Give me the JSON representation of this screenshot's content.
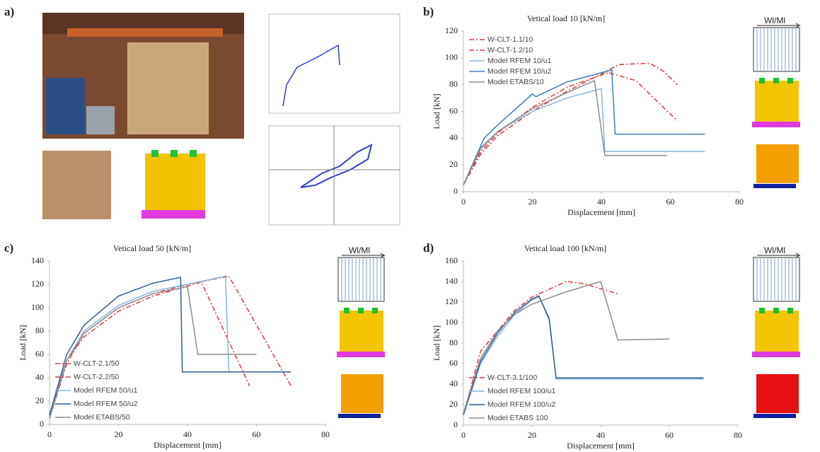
{
  "panel_labels": [
    "a)",
    "b)",
    "c)",
    "d)"
  ],
  "chart_data": [
    {
      "type": "line",
      "title": "Vetical load 10 [kN/m]",
      "x_label": "Displacement [mm]",
      "y_label": "Load [kN]",
      "xlim": [
        0,
        80
      ],
      "ylim": [
        0,
        120
      ],
      "xticks": [
        0,
        20,
        40,
        60,
        80
      ],
      "yticks": [
        0,
        20,
        40,
        60,
        80,
        100,
        120
      ],
      "grid": false,
      "legend": "upper left",
      "annotation": "Wl/Ml",
      "series": [
        {
          "name": "W-CLT-1.1/10",
          "color": "#e03a3a",
          "linestyle": "dashdot",
          "x": [
            0,
            5,
            10,
            20,
            30,
            40,
            45,
            54,
            58,
            62
          ],
          "values": [
            5,
            28,
            42,
            60,
            75,
            88,
            95,
            96,
            90,
            80
          ]
        },
        {
          "name": "W-CLT-1.2/10",
          "color": "#e03a3a",
          "linestyle": "dashdot",
          "x": [
            0,
            5,
            10,
            20,
            30,
            42,
            50,
            62
          ],
          "values": [
            5,
            30,
            44,
            63,
            78,
            89,
            83,
            53
          ]
        },
        {
          "name": "Model RFEM 10/u1",
          "color": "#86b6dc",
          "linestyle": "solid",
          "x": [
            0,
            5,
            10,
            20,
            30,
            40,
            41,
            70
          ],
          "values": [
            5,
            33,
            45,
            60,
            70,
            77,
            30,
            30
          ]
        },
        {
          "name": "Model RFEM 10/u2",
          "color": "#3d7db8",
          "linestyle": "solid",
          "x": [
            0,
            6,
            10,
            20,
            21,
            30,
            43,
            44,
            70
          ],
          "values": [
            5,
            40,
            50,
            73,
            71,
            82,
            91,
            43,
            43
          ]
        },
        {
          "name": "Model ETABS/10",
          "color": "#8c8c8c",
          "linestyle": "solid",
          "x": [
            0,
            5,
            10,
            20,
            30,
            38,
            41,
            59
          ],
          "values": [
            5,
            32,
            45,
            62,
            74,
            83,
            27,
            27
          ]
        }
      ]
    },
    {
      "type": "line",
      "title": "Vetical load 50 [kN/m]",
      "x_label": "Displacement [mm]",
      "y_label": "Load [kN]",
      "xlim": [
        0,
        80
      ],
      "ylim": [
        0,
        140
      ],
      "xticks": [
        0,
        20,
        40,
        60,
        80
      ],
      "yticks": [
        0,
        20,
        40,
        60,
        80,
        100,
        120,
        140
      ],
      "grid": false,
      "legend": "lower left",
      "annotation": "Wl/Ml",
      "series": [
        {
          "name": "W-CLT-2.1/50",
          "color": "#e03a3a",
          "linestyle": "dashdot",
          "x": [
            0,
            5,
            10,
            20,
            30,
            44,
            58
          ],
          "values": [
            8,
            55,
            75,
            97,
            110,
            122,
            33
          ]
        },
        {
          "name": "W-CLT-2.2/50",
          "color": "#e03a3a",
          "linestyle": "dashdot",
          "x": [
            0,
            5,
            10,
            20,
            30,
            40,
            52,
            70
          ],
          "values": [
            5,
            52,
            78,
            100,
            112,
            120,
            127,
            33
          ]
        },
        {
          "name": "Model RFEM 50/u1",
          "color": "#86b6dc",
          "linestyle": "solid",
          "x": [
            0,
            5,
            10,
            20,
            30,
            40,
            51,
            52,
            70
          ],
          "values": [
            8,
            55,
            80,
            102,
            114,
            120,
            127,
            45,
            45
          ]
        },
        {
          "name": "Model RFEM 50/u2",
          "color": "#2f5f94",
          "linestyle": "solid",
          "x": [
            0,
            5,
            10,
            20,
            30,
            38,
            38.5,
            70
          ],
          "values": [
            8,
            60,
            85,
            110,
            121,
            126,
            45,
            45
          ]
        },
        {
          "name": "Model ETABS/50",
          "color": "#8c8c8c",
          "linestyle": "solid",
          "x": [
            0,
            5,
            10,
            20,
            30,
            40,
            43,
            60
          ],
          "values": [
            5,
            55,
            78,
            100,
            112,
            118,
            60,
            60
          ]
        }
      ]
    },
    {
      "type": "line",
      "title": "Vetical load 100 [kN/m]",
      "x_label": "Displacement [mm]",
      "y_label": "Load [kN]",
      "xlim": [
        0,
        80
      ],
      "ylim": [
        0,
        160
      ],
      "xticks": [
        0,
        20,
        40,
        60,
        80
      ],
      "yticks": [
        0,
        20,
        40,
        60,
        80,
        100,
        120,
        140,
        160
      ],
      "grid": false,
      "legend": "lower left",
      "annotation": "Wl/Ml",
      "series": [
        {
          "name": "W-CLT-3.1/100",
          "color": "#e03a3a",
          "linestyle": "dashdot",
          "x": [
            0,
            5,
            10,
            15,
            20,
            30,
            35,
            45
          ],
          "values": [
            10,
            72,
            92,
            112,
            125,
            140,
            138,
            128
          ]
        },
        {
          "name": "Model RFEM 100/u1",
          "color": "#86b6dc",
          "linestyle": "solid",
          "x": [
            0,
            5,
            10,
            15,
            20,
            22,
            25,
            27,
            70
          ],
          "values": [
            10,
            60,
            87,
            108,
            122,
            125,
            105,
            45,
            45
          ]
        },
        {
          "name": "Model RFEM 100/u2",
          "color": "#2f5f94",
          "linestyle": "solid",
          "x": [
            0,
            5,
            10,
            15,
            20,
            22,
            25,
            27,
            70
          ],
          "values": [
            10,
            62,
            90,
            110,
            123,
            126,
            103,
            46,
            46
          ]
        },
        {
          "name": "Model ETABS 100",
          "color": "#8c8c8c",
          "linestyle": "solid",
          "x": [
            0,
            5,
            10,
            15,
            20,
            30,
            40,
            45,
            60
          ],
          "values": [
            12,
            65,
            92,
            108,
            118,
            130,
            140,
            83,
            84
          ]
        }
      ]
    }
  ]
}
